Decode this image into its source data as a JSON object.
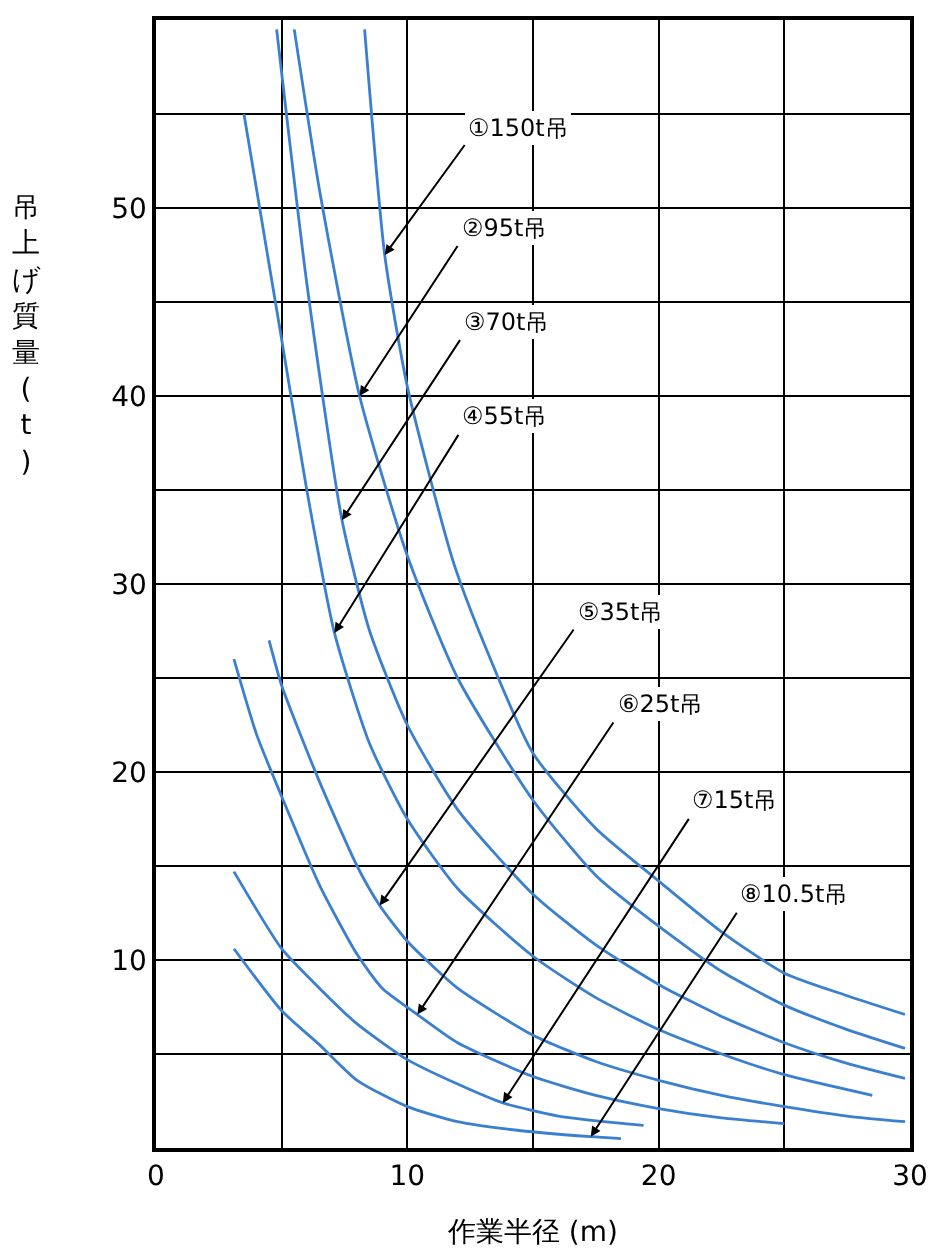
{
  "chart_data": {
    "type": "line",
    "xlabel": "作業半径 (m)",
    "ylabel": "吊上げ質量(t)",
    "xlim": [
      0,
      30
    ],
    "ylim": [
      0,
      60
    ],
    "xticks": [
      0,
      {
        "value": 5,
        "label": null
      },
      10,
      {
        "value": 15,
        "label": null
      },
      20,
      {
        "value": 25,
        "label": null
      },
      30
    ],
    "yticks": [
      {
        "value": 5,
        "label": null
      },
      10,
      {
        "value": 15,
        "label": null
      },
      20,
      {
        "value": 25,
        "label": null
      },
      30,
      {
        "value": 35,
        "label": null
      },
      40,
      {
        "value": 45,
        "label": null
      },
      50,
      {
        "value": 55,
        "label": null
      }
    ],
    "grid": true,
    "marker": "none",
    "line_style": "solid",
    "series": [
      {
        "color": "#3a7fd0",
        "x": [
          8.3,
          9.1,
          10,
          11.8,
          13,
          15,
          17.5,
          20,
          22.5,
          25,
          27.5,
          29.8
        ],
        "values": [
          59.5,
          47.5,
          40.5,
          31.3,
          27,
          21,
          17,
          14.2,
          11.5,
          9.3,
          8.1,
          7.1
        ]
      },
      {
        "color": "#3a7fd0",
        "x": [
          5.5,
          6.5,
          8.1,
          10,
          12,
          15,
          17.5,
          20,
          22.5,
          25,
          27.5,
          29.8
        ],
        "values": [
          59.5,
          51,
          40,
          31.5,
          25,
          18.5,
          14.5,
          11.8,
          9.4,
          7.6,
          6.3,
          5.3
        ]
      },
      {
        "color": "#3a7fd0",
        "x": [
          4.8,
          6,
          7.4,
          8.5,
          10,
          12,
          15,
          17.5,
          20,
          22.5,
          25,
          27.5,
          29.8
        ],
        "values": [
          59.5,
          46,
          33.4,
          27.5,
          22.5,
          18,
          13.5,
          10.8,
          8.7,
          7,
          5.6,
          4.5,
          3.7
        ]
      },
      {
        "color": "#3a7fd0",
        "x": [
          3.5,
          5,
          6,
          7.1,
          8.5,
          10,
          12,
          15,
          17.5,
          20,
          22.5,
          25,
          28.5
        ],
        "values": [
          55,
          43,
          35,
          27.4,
          21.5,
          17.5,
          13.8,
          10.2,
          8,
          6.3,
          5,
          3.9,
          2.8
        ]
      },
      {
        "color": "#3a7fd0",
        "x": [
          4.5,
          5,
          6.5,
          8,
          8.9,
          10,
          12,
          15,
          17.5,
          20,
          22.5,
          25,
          27.5,
          29.8
        ],
        "values": [
          27,
          24.6,
          19.5,
          15,
          12.9,
          11,
          8.5,
          6,
          4.6,
          3.6,
          2.8,
          2.2,
          1.7,
          1.4
        ]
      },
      {
        "color": "#3a7fd0",
        "x": [
          3.1,
          4,
          5,
          6.5,
          8,
          9,
          10.4,
          12,
          15,
          17.5,
          20,
          22.5,
          25
        ],
        "values": [
          26,
          22,
          18.7,
          14,
          10.3,
          8.5,
          7.1,
          5.6,
          3.8,
          2.8,
          2.1,
          1.6,
          1.3
        ]
      },
      {
        "color": "#3a7fd0",
        "x": [
          3.1,
          5,
          6.5,
          8,
          10,
          12,
          13.8,
          16,
          19.4
        ],
        "values": [
          14.7,
          10.6,
          8.5,
          6.6,
          4.7,
          3.4,
          2.4,
          1.7,
          1.2
        ]
      },
      {
        "color": "#3a7fd0",
        "x": [
          3.1,
          5,
          6.5,
          8,
          10,
          12,
          14,
          17.3,
          18.5
        ],
        "values": [
          10.6,
          7.3,
          5.5,
          3.6,
          2.2,
          1.4,
          1.0,
          0.6,
          0.5
        ]
      }
    ],
    "annotations": [
      {
        "text": "①150t吊",
        "x": 9.1,
        "y": 47.5
      },
      {
        "text": "②95t吊",
        "x": 8.1,
        "y": 40
      },
      {
        "text": "③70t吊",
        "x": 7.4,
        "y": 33.4
      },
      {
        "text": "④55t吊",
        "x": 7.1,
        "y": 27.4
      },
      {
        "text": "⑤35t吊",
        "x": 8.9,
        "y": 12.9
      },
      {
        "text": "⑥25t吊",
        "x": 10.4,
        "y": 7.1
      },
      {
        "text": "⑦15t吊",
        "x": 13.8,
        "y": 2.4
      },
      {
        "text": "⑧10.5t吊",
        "x": 17.3,
        "y": 0.6
      }
    ]
  }
}
